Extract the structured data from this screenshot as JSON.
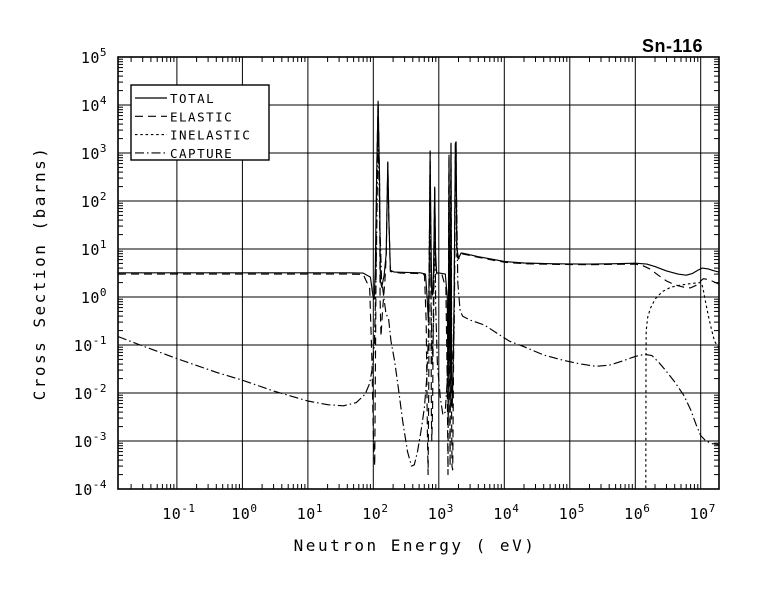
{
  "title": "Sn-116",
  "x_axis": {
    "label": "Neutron Energy ( eV)",
    "scale": "log",
    "tick_exponents": [
      -1,
      0,
      1,
      2,
      3,
      4,
      5,
      6,
      7
    ]
  },
  "y_axis": {
    "label": "Cross Section (barns)",
    "scale": "log",
    "tick_exponents": [
      5,
      4,
      3,
      2,
      1,
      0,
      -1,
      -2,
      -3,
      -4
    ]
  },
  "legend": {
    "position": "upper-left",
    "items": [
      "TOTAL",
      "ELASTIC",
      "INELASTIC",
      "CAPTURE"
    ]
  },
  "chart_data": {
    "type": "line",
    "title": "Sn-116",
    "xlabel": "Neutron Energy ( eV)",
    "ylabel": "Cross Section (barns)",
    "xscale": "log",
    "yscale": "log",
    "xlim": [
      0.0126,
      19000000
    ],
    "ylim": [
      0.0001,
      100000
    ],
    "grid": true,
    "legend_position": "upper-left",
    "series": [
      {
        "name": "TOTAL",
        "line_style": "solid",
        "points": [
          [
            0.0126,
            3.2
          ],
          [
            0.1,
            3.2
          ],
          [
            1,
            3.2
          ],
          [
            10,
            3.2
          ],
          [
            40,
            3.2
          ],
          [
            70,
            3.15
          ],
          [
            90,
            2.6
          ],
          [
            98,
            1.1
          ],
          [
            103,
            0.9
          ],
          [
            107,
            4
          ],
          [
            112,
            300
          ],
          [
            118,
            12000
          ],
          [
            124,
            350
          ],
          [
            128,
            2.2
          ],
          [
            134,
            1.6
          ],
          [
            146,
            2.8
          ],
          [
            157,
            8
          ],
          [
            166,
            650
          ],
          [
            173,
            40
          ],
          [
            182,
            3.6
          ],
          [
            210,
            3.3
          ],
          [
            320,
            3.25
          ],
          [
            520,
            3.2
          ],
          [
            625,
            3.0
          ],
          [
            662,
            1.0
          ],
          [
            692,
            0.3
          ],
          [
            712,
            2.5
          ],
          [
            737,
            1100
          ],
          [
            757,
            25
          ],
          [
            778,
            1.3
          ],
          [
            802,
            1.1
          ],
          [
            833,
            4
          ],
          [
            866,
            195
          ],
          [
            893,
            8
          ],
          [
            925,
            3.2
          ],
          [
            1020,
            3.15
          ],
          [
            1255,
            3.0
          ],
          [
            1345,
            1.0
          ],
          [
            1392,
            0.0025
          ],
          [
            1432,
            900
          ],
          [
            1466,
            0.05
          ],
          [
            1492,
            0.004
          ],
          [
            1532,
            1600
          ],
          [
            1562,
            0.03
          ],
          [
            1603,
            0.005
          ],
          [
            1643,
            0.02
          ],
          [
            1702,
            0.6
          ],
          [
            1788,
            1600
          ],
          [
            1833,
            1700
          ],
          [
            1884,
            10
          ],
          [
            2005,
            6.5
          ],
          [
            2200,
            8.3
          ],
          [
            2620,
            7.9
          ],
          [
            4000,
            6.9
          ],
          [
            7000,
            6.0
          ],
          [
            10000,
            5.5
          ],
          [
            20000,
            5.1
          ],
          [
            50000,
            4.95
          ],
          [
            100000,
            4.9
          ],
          [
            200000,
            4.85
          ],
          [
            500000,
            4.95
          ],
          [
            1000000,
            5.05
          ],
          [
            1500000,
            4.85
          ],
          [
            2000000,
            4.3
          ],
          [
            3000000,
            3.5
          ],
          [
            4500000,
            3.0
          ],
          [
            6000000,
            2.85
          ],
          [
            7500000,
            3.1
          ],
          [
            9000000,
            3.6
          ],
          [
            10500000,
            4.0
          ],
          [
            13000000,
            3.85
          ],
          [
            15500000,
            3.55
          ],
          [
            19000000,
            3.3
          ]
        ]
      },
      {
        "name": "ELASTIC",
        "line_style": "long-dash",
        "points": [
          [
            0.0126,
            3.0
          ],
          [
            0.1,
            3.0
          ],
          [
            1,
            3.0
          ],
          [
            10,
            3.0
          ],
          [
            40,
            3.0
          ],
          [
            70,
            2.95
          ],
          [
            88,
            1.5
          ],
          [
            95,
            0.05
          ],
          [
            100,
            0.0015
          ],
          [
            105,
            0.0003
          ],
          [
            109,
            0.5
          ],
          [
            112,
            280
          ],
          [
            118,
            11500
          ],
          [
            124,
            280
          ],
          [
            127,
            0.9
          ],
          [
            131,
            0.15
          ],
          [
            138,
            0.5
          ],
          [
            150,
            2.2
          ],
          [
            157,
            7
          ],
          [
            166,
            620
          ],
          [
            173,
            35
          ],
          [
            182,
            3.4
          ],
          [
            260,
            3.15
          ],
          [
            460,
            3.1
          ],
          [
            605,
            2.9
          ],
          [
            642,
            0.3
          ],
          [
            668,
            0.0015
          ],
          [
            686,
            0.0002
          ],
          [
            701,
            0.01
          ],
          [
            714,
            1.2
          ],
          [
            737,
            1050
          ],
          [
            753,
            8
          ],
          [
            769,
            0.003
          ],
          [
            781,
            0.001
          ],
          [
            803,
            0.005
          ],
          [
            833,
            2.5
          ],
          [
            866,
            185
          ],
          [
            892,
            6
          ],
          [
            932,
            3.05
          ],
          [
            1110,
            3.0
          ],
          [
            1282,
            1.5
          ],
          [
            1342,
            0.02
          ],
          [
            1381,
            0.0002
          ],
          [
            1416,
            50
          ],
          [
            1432,
            850
          ],
          [
            1461,
            0.01
          ],
          [
            1486,
            0.0003
          ],
          [
            1532,
            1500
          ],
          [
            1559,
            0.008
          ],
          [
            1591,
            0.0003
          ],
          [
            1626,
            0.00025
          ],
          [
            1696,
            0.3
          ],
          [
            1788,
            1500
          ],
          [
            1826,
            1550
          ],
          [
            1884,
            7
          ],
          [
            2005,
            6.2
          ],
          [
            2200,
            8.0
          ],
          [
            2620,
            7.6
          ],
          [
            4000,
            6.7
          ],
          [
            7000,
            5.8
          ],
          [
            10000,
            5.3
          ],
          [
            20000,
            4.95
          ],
          [
            50000,
            4.8
          ],
          [
            100000,
            4.75
          ],
          [
            200000,
            4.7
          ],
          [
            500000,
            4.8
          ],
          [
            1000000,
            4.85
          ],
          [
            1300000,
            4.5
          ],
          [
            1700000,
            3.8
          ],
          [
            2200000,
            2.9
          ],
          [
            3000000,
            2.15
          ],
          [
            4000000,
            1.8
          ],
          [
            5500000,
            1.6
          ],
          [
            7000000,
            1.55
          ],
          [
            8500000,
            1.75
          ],
          [
            9700000,
            2.1
          ],
          [
            11000000,
            2.4
          ],
          [
            13000000,
            2.3
          ],
          [
            15500000,
            2.1
          ],
          [
            19000000,
            1.85
          ]
        ]
      },
      {
        "name": "INELASTIC",
        "line_style": "short-dash",
        "points": [
          [
            1450000,
            0.000105
          ],
          [
            1460000,
            0.05
          ],
          [
            1470000,
            0.2
          ],
          [
            1550000,
            0.38
          ],
          [
            1700000,
            0.58
          ],
          [
            2000000,
            0.9
          ],
          [
            2600000,
            1.3
          ],
          [
            3500000,
            1.6
          ],
          [
            5000000,
            1.78
          ],
          [
            7000000,
            1.9
          ],
          [
            9000000,
            1.97
          ],
          [
            10200000,
            2.0
          ],
          [
            10800000,
            1.55
          ],
          [
            11800000,
            0.8
          ],
          [
            13000000,
            0.42
          ],
          [
            14500000,
            0.22
          ],
          [
            16200000,
            0.12
          ],
          [
            19000000,
            0.085
          ]
        ]
      },
      {
        "name": "CAPTURE",
        "line_style": "dash-dot",
        "points": [
          [
            0.0126,
            0.15
          ],
          [
            0.025,
            0.105
          ],
          [
            0.1,
            0.052
          ],
          [
            0.4,
            0.027
          ],
          [
            1,
            0.0185
          ],
          [
            3,
            0.011
          ],
          [
            10,
            0.0068
          ],
          [
            20,
            0.0057
          ],
          [
            35,
            0.0054
          ],
          [
            55,
            0.0063
          ],
          [
            75,
            0.0095
          ],
          [
            88,
            0.016
          ],
          [
            97,
            0.035
          ],
          [
            104,
            0.12
          ],
          [
            110,
            3
          ],
          [
            118,
            2500
          ],
          [
            125,
            40
          ],
          [
            133,
            2.5
          ],
          [
            143,
            1.1
          ],
          [
            156,
            0.45
          ],
          [
            171,
            0.35
          ],
          [
            186,
            0.12
          ],
          [
            212,
            0.045
          ],
          [
            242,
            0.012
          ],
          [
            282,
            0.0025
          ],
          [
            332,
            0.0006
          ],
          [
            382,
            0.0003
          ],
          [
            422,
            0.00032
          ],
          [
            472,
            0.0006
          ],
          [
            542,
            0.0018
          ],
          [
            602,
            0.005
          ],
          [
            652,
            0.02
          ],
          [
            692,
            0.15
          ],
          [
            737,
            550
          ],
          [
            762,
            0.8
          ],
          [
            792,
            0.04
          ],
          [
            833,
            0.3
          ],
          [
            866,
            110
          ],
          [
            897,
            0.6
          ],
          [
            952,
            0.04
          ],
          [
            1052,
            0.008
          ],
          [
            1152,
            0.0035
          ],
          [
            1252,
            0.004
          ],
          [
            1332,
            0.015
          ],
          [
            1402,
            0.2
          ],
          [
            1432,
            350
          ],
          [
            1466,
            0.1
          ],
          [
            1532,
            650
          ],
          [
            1572,
            0.08
          ],
          [
            1652,
            0.03
          ],
          [
            1722,
            0.3
          ],
          [
            1800,
            650
          ],
          [
            1852,
            200
          ],
          [
            1952,
            2
          ],
          [
            2102,
            0.55
          ],
          [
            2300,
            0.4
          ],
          [
            3000,
            0.33
          ],
          [
            5000,
            0.26
          ],
          [
            8000,
            0.17
          ],
          [
            12000,
            0.12
          ],
          [
            20000,
            0.092
          ],
          [
            40000,
            0.062
          ],
          [
            80000,
            0.048
          ],
          [
            150000,
            0.04
          ],
          [
            250000,
            0.036
          ],
          [
            400000,
            0.038
          ],
          [
            600000,
            0.045
          ],
          [
            1000000,
            0.058
          ],
          [
            1400000,
            0.064
          ],
          [
            1800000,
            0.06
          ],
          [
            2300000,
            0.043
          ],
          [
            3000000,
            0.028
          ],
          [
            4000000,
            0.017
          ],
          [
            5500000,
            0.009
          ],
          [
            7000000,
            0.0045
          ],
          [
            8500000,
            0.0022
          ],
          [
            10000000,
            0.0013
          ],
          [
            12000000,
            0.001
          ],
          [
            15000000,
            0.00088
          ],
          [
            19000000,
            0.00084
          ]
        ]
      }
    ]
  }
}
